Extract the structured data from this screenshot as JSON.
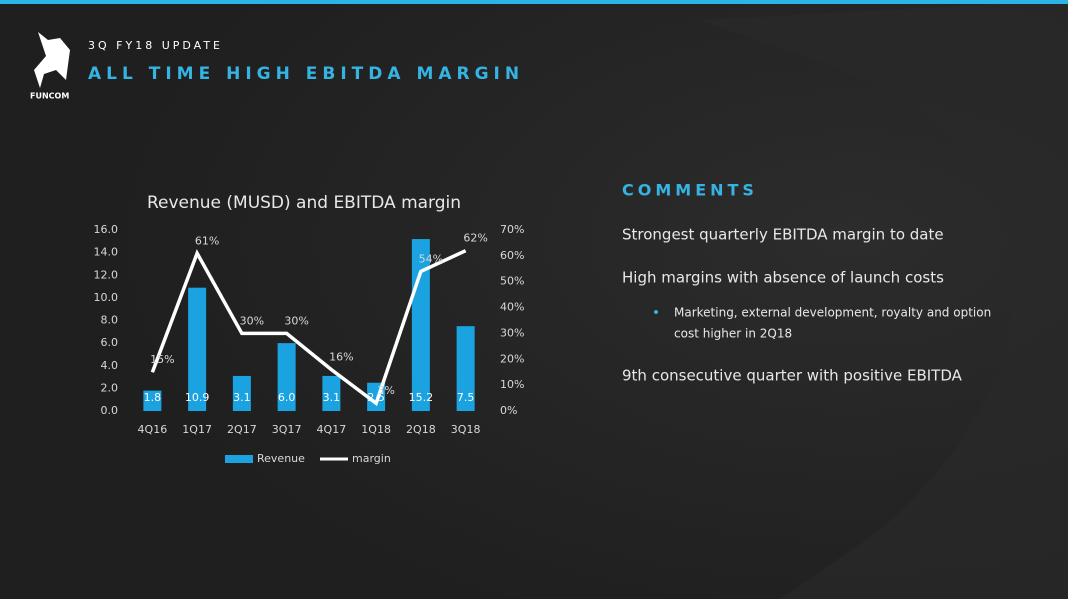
{
  "header": {
    "logo": "FUNCOM",
    "kicker": "3Q FY18 UPDATE",
    "title": "ALL TIME HIGH EBITDA MARGIN"
  },
  "comments": {
    "heading": "COMMENTS",
    "items": [
      "Strongest quarterly EBITDA margin to date",
      "High margins with absence of launch costs"
    ],
    "bullet": [
      "Marketing, external development, royalty and option",
      "cost higher in 2Q18"
    ],
    "last": "9th consecutive quarter with positive EBITDA"
  },
  "chart_data": {
    "type": "bar",
    "title": "Revenue (MUSD) and EBITDA margin",
    "categories": [
      "4Q16",
      "1Q17",
      "2Q17",
      "3Q17",
      "4Q17",
      "1Q18",
      "2Q18",
      "3Q18"
    ],
    "series": [
      {
        "name": "Revenue",
        "color": "#1aa3e0",
        "values": [
          1.8,
          10.9,
          3.1,
          6.0,
          3.1,
          2.5,
          15.2,
          7.5
        ],
        "value_labels": [
          "1.8",
          "10.9",
          "3.1",
          "6.0",
          "3.1",
          "2.5",
          "15.2",
          "7.5"
        ]
      },
      {
        "name": "margin",
        "type": "line",
        "axis": "y2",
        "color": "#ffffff",
        "values": [
          15,
          61,
          30,
          30,
          16,
          3,
          54,
          62
        ],
        "value_labels": [
          "15%",
          "61%",
          "30%",
          "30%",
          "16%",
          "3%",
          "54%",
          "62%"
        ]
      }
    ],
    "ylim": [
      0,
      16
    ],
    "yticks": [
      {
        "value": 0,
        "label": "0.0"
      },
      {
        "value": 2,
        "label": "2.0"
      },
      {
        "value": 4,
        "label": "4.0"
      },
      {
        "value": 6,
        "label": "6.0"
      },
      {
        "value": 8,
        "label": "8.0"
      },
      {
        "value": 10,
        "label": "10.0"
      },
      {
        "value": 12,
        "label": "12.0"
      },
      {
        "value": 14,
        "label": "14.0"
      },
      {
        "value": 16,
        "label": "16.0"
      }
    ],
    "y2lim": [
      0,
      70
    ],
    "y2ticks": [
      {
        "value": 0,
        "label": "0%"
      },
      {
        "value": 10,
        "label": "10%"
      },
      {
        "value": 20,
        "label": "20%"
      },
      {
        "value": 30,
        "label": "30%"
      },
      {
        "value": 40,
        "label": "40%"
      },
      {
        "value": 50,
        "label": "50%"
      },
      {
        "value": 60,
        "label": "60%"
      },
      {
        "value": 70,
        "label": "70%"
      }
    ],
    "legend": "bottom"
  }
}
